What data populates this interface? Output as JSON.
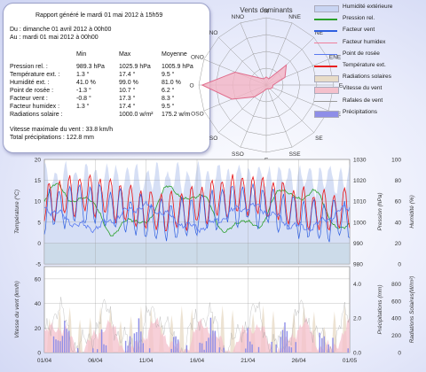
{
  "report": {
    "title": "Rapport généré le mardi 01 mai 2012 à 15h59",
    "from": "Du : dimanche 01 avril 2012 à 00h00",
    "to": "Au : mardi 01 mai 2012 à 00h00",
    "columns": [
      "Min",
      "Max",
      "Moyenne"
    ],
    "rows": [
      {
        "label": "Pression rel. :",
        "min": "989.3 hPa",
        "max": "1025.9 hPa",
        "avg": "1005.9 hPa"
      },
      {
        "label": "Température ext. :",
        "min": "1.3 °",
        "max": "17.4 °",
        "avg": "9.5 °"
      },
      {
        "label": "Humidité ext. :",
        "min": "41.0 %",
        "max": "99.0 %",
        "avg": "81.0 %"
      },
      {
        "label": "Point de rosée :",
        "min": "-1.3 °",
        "max": "10.7 °",
        "avg": "6.2 °"
      },
      {
        "label": "Facteur vent :",
        "min": "-0.8 °",
        "max": "17.3 °",
        "avg": "8.3 °"
      },
      {
        "label": "Facteur humidex :",
        "min": "1.3 °",
        "max": "17.4 °",
        "avg": "9.5 °"
      },
      {
        "label": "Radiations solaire :",
        "min": "",
        "max": "1000.0 w/m²",
        "avg": "175.2 w/m"
      }
    ],
    "wind_max": "Vitesse maximale du vent : 33.8 km/h",
    "precip_total": "Total précipitations : 122.8 mm"
  },
  "wind_rose": {
    "title": "Vents dominants",
    "directions": [
      "N",
      "NNE",
      "NE",
      "ENE",
      "E",
      "ESE",
      "SE",
      "SSE",
      "S",
      "SSO",
      "SO",
      "OSO",
      "O",
      "ONO",
      "NO",
      "NNO"
    ],
    "values": [
      0.12,
      0.1,
      0.42,
      0.3,
      0.1,
      0.1,
      0.08,
      0.06,
      0.06,
      0.1,
      0.25,
      0.55,
      0.95,
      0.5,
      0.15,
      0.1
    ],
    "colors": {
      "fill": "#f2b4c4",
      "stroke": "#e06c8c",
      "grid": "#999999"
    }
  },
  "legend": [
    {
      "label": "Humidité extérieure",
      "color": "#c8d4f2",
      "kind": "area"
    },
    {
      "label": "Pression rel.",
      "color": "#2aa02a",
      "kind": "line"
    },
    {
      "label": "Facteur vent",
      "color": "#2e5fe0",
      "kind": "line"
    },
    {
      "label": "Facteur humidex",
      "color": "#f07f9c",
      "kind": "line"
    },
    {
      "label": "Point de rosée",
      "color": "#5a7bf0",
      "kind": "line"
    },
    {
      "label": "Température ext.",
      "color": "#e82020",
      "kind": "line"
    },
    {
      "label": "Radiations solaires",
      "color": "#e8dcc8",
      "kind": "area"
    },
    {
      "label": "Vitesse du vent",
      "color": "#f4c0cc",
      "kind": "area"
    },
    {
      "label": "Rafales de vent",
      "color": "#999999",
      "kind": "line"
    },
    {
      "label": "Précipitations",
      "color": "#8e8ee8",
      "kind": "area"
    }
  ],
  "chart_data": [
    {
      "type": "line",
      "x_ticks": [
        "01/04",
        "06/04",
        "11/04",
        "16/04",
        "21/04",
        "26/04",
        "01/05"
      ],
      "ylabel_left": "Température (°C)",
      "ylabel_right1": "Pression (hPa)",
      "ylabel_right2": "Humidité (%)",
      "y_left_ticks": [
        "20",
        "15",
        "10",
        "5",
        "0",
        "-5"
      ],
      "y_right1_ticks": [
        "1030",
        "1020",
        "1010",
        "1000",
        "990",
        "980"
      ],
      "y_right2_ticks": [
        "100",
        "80",
        "60",
        "40",
        "20",
        "0"
      ],
      "ylim_left": [
        -5,
        20
      ],
      "ylim_pressure": [
        980,
        1030
      ],
      "ylim_humidity": [
        0,
        100
      ],
      "days": 30,
      "series": [
        {
          "name": "Humidité extérieure",
          "axis": "humidity",
          "min": 41,
          "max": 99,
          "mean": 81
        },
        {
          "name": "Pression rel.",
          "axis": "pressure",
          "min": 989.3,
          "max": 1025.9,
          "mean": 1005.9
        },
        {
          "name": "Température ext.",
          "axis": "temp",
          "min": 1.3,
          "max": 17.4,
          "mean": 9.5
        },
        {
          "name": "Point de rosée",
          "axis": "temp",
          "min": -1.3,
          "max": 10.7,
          "mean": 6.2
        },
        {
          "name": "Facteur vent",
          "axis": "temp",
          "min": -0.8,
          "max": 17.3,
          "mean": 8.3
        }
      ]
    },
    {
      "type": "area",
      "x_ticks": [
        "01/04",
        "06/04",
        "11/04",
        "16/04",
        "21/04",
        "26/04",
        "01/05"
      ],
      "ylabel_left": "Vitesse du vent (km/h)",
      "ylabel_right1": "Précipitations (mm)",
      "ylabel_right2": "Radiations Solaires(W/m²)",
      "y_left_ticks": [
        "60",
        "40",
        "20",
        "0"
      ],
      "y_right1_ticks": [
        "4.0",
        "2.0",
        "0.0"
      ],
      "y_right2_ticks": [
        "800",
        "600",
        "400",
        "200",
        "0"
      ],
      "ylim_left": [
        0,
        70
      ],
      "ylim_precip": [
        0,
        5
      ],
      "ylim_solar": [
        0,
        1000
      ],
      "series": [
        {
          "name": "Radiations solaires",
          "axis": "solar",
          "max": 1000
        },
        {
          "name": "Vitesse du vent",
          "axis": "wind",
          "max": 33.8
        },
        {
          "name": "Précipitations",
          "axis": "precip",
          "total": 122.8
        }
      ]
    }
  ]
}
